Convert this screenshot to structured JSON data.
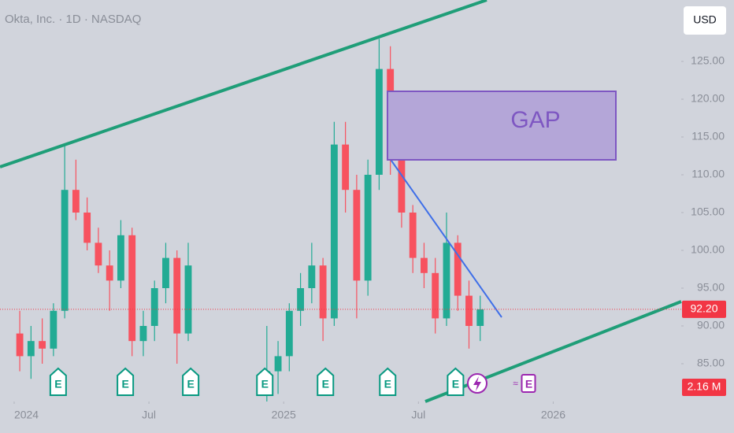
{
  "chart_data": {
    "type": "candlestick",
    "title": "Okta, Inc. · 1D · NASDAQ",
    "currency": "USD",
    "annotations": [
      "GAP"
    ],
    "x": [
      0.25,
      0.75,
      1.25,
      1.75,
      2.25,
      2.75,
      3.25,
      3.75,
      4.25,
      4.75,
      5.25,
      5.75,
      6.25,
      6.75,
      7.25,
      7.75,
      11.25,
      11.75,
      12.25,
      12.75,
      13.25,
      13.75,
      14.25,
      14.75,
      15.25,
      15.75,
      16.25,
      16.75,
      17.25,
      17.75,
      18.25,
      18.75,
      19.25,
      19.75,
      20.25,
      20.75
    ],
    "open": [
      89,
      86,
      88,
      87,
      92,
      108,
      105,
      101,
      98,
      96,
      102,
      88,
      90,
      95,
      99,
      89,
      82,
      84,
      86,
      92,
      95,
      98,
      91,
      114,
      108,
      96,
      110,
      124,
      112,
      105,
      99,
      97,
      91,
      101,
      94,
      90
    ],
    "high": [
      92,
      90,
      91,
      93,
      114,
      112,
      107,
      103,
      100,
      104,
      103,
      92,
      96,
      101,
      100,
      101,
      90,
      88,
      93,
      97,
      101,
      99,
      117,
      117,
      110,
      112,
      128,
      127,
      113,
      106,
      101,
      99,
      105,
      102,
      96,
      94
    ],
    "low": [
      84,
      83,
      85,
      86,
      91,
      104,
      100,
      97,
      92,
      95,
      86,
      86,
      88,
      93,
      85,
      88,
      80,
      81,
      84,
      90,
      93,
      88,
      90,
      105,
      91,
      94,
      108,
      110,
      103,
      97,
      95,
      89,
      90,
      92,
      87,
      88
    ],
    "close": [
      86,
      88,
      87,
      92,
      108,
      105,
      101,
      98,
      96,
      102,
      88,
      90,
      95,
      99,
      89,
      98,
      84,
      86,
      92,
      95,
      98,
      91,
      114,
      108,
      96,
      110,
      124,
      112,
      105,
      99,
      97,
      91,
      101,
      94,
      90,
      92.2
    ],
    "up_color": "#22ab94",
    "down_color": "#f7525f",
    "xlim": [
      -0.63,
      29.7
    ],
    "xticks": [
      {
        "value": 0,
        "label": "2024"
      },
      {
        "value": 6,
        "label": "Jul"
      },
      {
        "value": 12,
        "label": "2025"
      },
      {
        "value": 18,
        "label": "Jul"
      },
      {
        "value": 24,
        "label": "2026"
      }
    ],
    "ylim": [
      80,
      133.125
    ],
    "yticks": [
      {
        "value": 85,
        "label": "85.00"
      },
      {
        "value": 90,
        "label": "90.00"
      },
      {
        "value": 95,
        "label": "95.00"
      },
      {
        "value": 100,
        "label": "100.00"
      },
      {
        "value": 105,
        "label": "105.00"
      },
      {
        "value": 110,
        "label": "110.00"
      },
      {
        "value": 115,
        "label": "115.00"
      },
      {
        "value": 120,
        "label": "120.00"
      },
      {
        "value": 125,
        "label": "125.00"
      }
    ],
    "last_price": 92.2,
    "last_price_label": "92.20",
    "volume": 2160000,
    "volume_label": "2.16 M",
    "events": [
      {
        "x": 1.96,
        "label": "E"
      },
      {
        "x": 4.95,
        "label": "E"
      },
      {
        "x": 7.86,
        "label": "E"
      },
      {
        "x": 11.16,
        "label": "E"
      },
      {
        "x": 13.86,
        "label": "E"
      },
      {
        "x": 16.63,
        "label": "E"
      },
      {
        "x": 19.65,
        "label": "E"
      },
      {
        "x": 22.88,
        "label": "E"
      }
    ]
  }
}
